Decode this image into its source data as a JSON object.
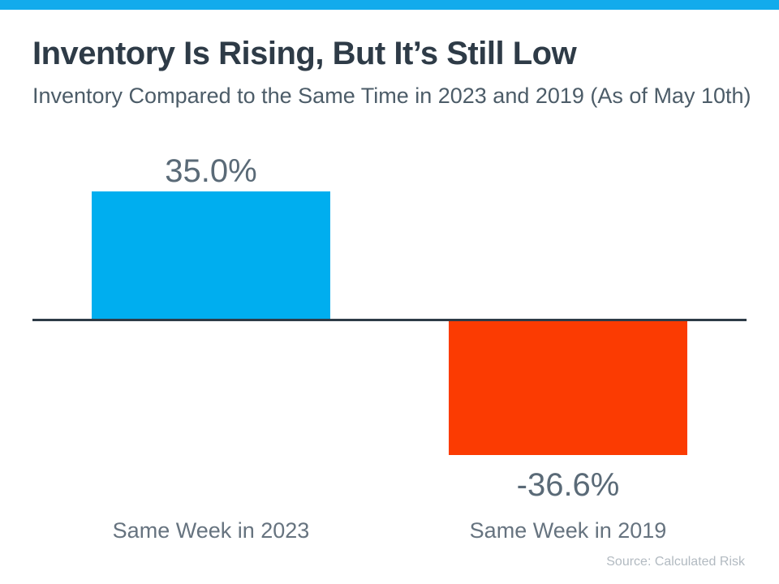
{
  "header": {
    "title": "Inventory Is Rising, But It’s Still Low",
    "subtitle": "Inventory Compared to the Same Time in 2023 and 2019 (As of May 10th)"
  },
  "chart_data": {
    "type": "bar",
    "title": "Inventory Is Rising, But It’s Still Low",
    "subtitle": "Inventory Compared to the Same Time in 2023 and 2019 (As of May 10th)",
    "categories": [
      "Same Week in 2023",
      "Same Week in 2019"
    ],
    "values": [
      35.0,
      -36.6
    ],
    "value_labels": [
      "35.0%",
      "-36.6%"
    ],
    "colors": [
      "#00AEEF",
      "#FB3B02"
    ],
    "xlabel": "",
    "ylabel": "",
    "ylim": [
      -40,
      40
    ],
    "grid": false,
    "legend": "none",
    "baseline_color": "#2E3B47"
  },
  "accent": {
    "top_bar_color": "#12ABEC"
  },
  "footer": {
    "source": "Source: Calculated Risk"
  }
}
